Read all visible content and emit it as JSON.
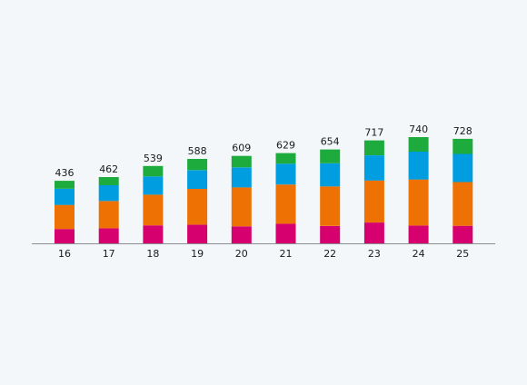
{
  "chart_data": {
    "type": "bar",
    "stacked": true,
    "categories": [
      "16",
      "17",
      "18",
      "19",
      "20",
      "21",
      "22",
      "23",
      "24",
      "25"
    ],
    "totals": [
      436,
      462,
      539,
      588,
      609,
      629,
      654,
      717,
      740,
      728
    ],
    "series": [
      {
        "color": "#d6006f",
        "values": [
          100,
          105,
          125,
          130,
          118,
          137,
          121,
          145,
          124,
          122
        ]
      },
      {
        "color": "#ee7203",
        "values": [
          168,
          190,
          214,
          250,
          272,
          273,
          276,
          293,
          321,
          305
        ]
      },
      {
        "color": "#009de0",
        "values": [
          113,
          110,
          127,
          130,
          139,
          145,
          161,
          175,
          194,
          196
        ]
      },
      {
        "color": "#1eab3d",
        "values": [
          55,
          57,
          73,
          78,
          80,
          74,
          96,
          104,
          101,
          105
        ]
      }
    ],
    "ylim": [
      0,
      760
    ],
    "xlabel": "",
    "ylabel": "",
    "grid": false,
    "legend": "none"
  }
}
